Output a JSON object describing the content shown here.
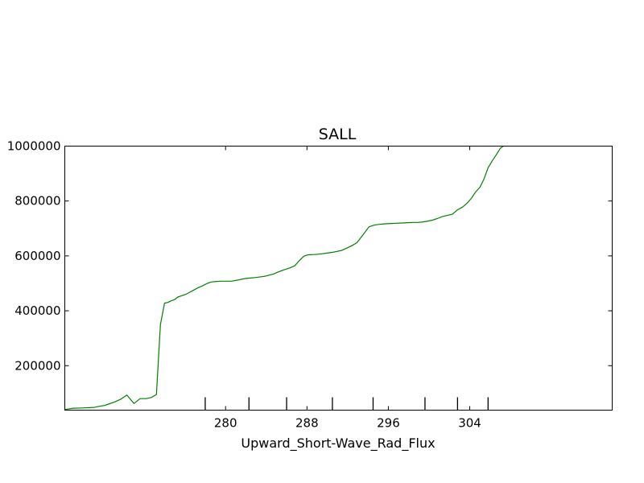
{
  "chart_data": {
    "type": "line",
    "title": "SALL",
    "xlabel": "Upward_Short-Wave_Rad_Flux",
    "ylabel": "",
    "xlim": [
      264.2,
      318.0
    ],
    "ylim": [
      38000,
      1000000
    ],
    "grid": false,
    "x_ticks": [
      280,
      288,
      296,
      304
    ],
    "x_tick_labels": [
      "280",
      "288",
      "296",
      "304"
    ],
    "x_minor_ticks": [
      278.0,
      282.3,
      286.0,
      290.5,
      294.5,
      299.6,
      302.8,
      305.8
    ],
    "y_ticks": [
      200000,
      400000,
      600000,
      800000,
      1000000
    ],
    "y_tick_labels": [
      "200000",
      "400000",
      "600000",
      "800000",
      "1000000"
    ],
    "series": [
      {
        "color": "#008000",
        "x": [
          264.2,
          265.0,
          265.9,
          266.6,
          267.1,
          267.6,
          268.1,
          268.5,
          269.1,
          269.7,
          270.3,
          271.0,
          271.6,
          272.2,
          272.7,
          273.2,
          273.6,
          274.0,
          274.3,
          274.6,
          275.0,
          275.3,
          275.7,
          276.1,
          276.5,
          276.9,
          277.3,
          277.8,
          278.2,
          278.6,
          279.1,
          279.6,
          280.1,
          280.6,
          281.2,
          281.7,
          282.3,
          282.9,
          283.5,
          283.9,
          284.2,
          284.7,
          285.2,
          285.8,
          286.3,
          286.8,
          287.2,
          287.7,
          288.1,
          288.7,
          289.1,
          289.5,
          290.1,
          290.5,
          290.9,
          291.4,
          291.9,
          292.4,
          292.9,
          293.5,
          294.1,
          294.6,
          295.1,
          295.7,
          296.3,
          296.8,
          297.4,
          297.9,
          298.4,
          298.9,
          299.3,
          299.8,
          300.3,
          300.8,
          301.3,
          301.7,
          302.3,
          302.8,
          303.3,
          303.8,
          304.2,
          304.6,
          305.0,
          305.4,
          305.8,
          306.2,
          306.6,
          307.0,
          307.3
        ],
        "y": [
          40000,
          45000,
          46000,
          47000,
          48000,
          52000,
          55000,
          60000,
          68000,
          78000,
          93000,
          62000,
          80000,
          80000,
          84000,
          95000,
          350000,
          428000,
          430000,
          435000,
          441000,
          450000,
          455000,
          460000,
          468000,
          476000,
          484000,
          492000,
          500000,
          505000,
          507000,
          508000,
          508000,
          508000,
          512000,
          516000,
          519000,
          521000,
          524000,
          526000,
          529000,
          534000,
          542000,
          550000,
          556000,
          564000,
          581000,
          599000,
          604000,
          605000,
          606000,
          608000,
          611000,
          613000,
          616000,
          620000,
          628000,
          637000,
          648000,
          676000,
          706000,
          712000,
          715000,
          717000,
          718000,
          719000,
          720000,
          721000,
          722000,
          722000,
          723000,
          726000,
          730000,
          736000,
          743000,
          747000,
          752000,
          768000,
          778000,
          794000,
          812000,
          834000,
          850000,
          880000,
          921000,
          946000,
          968000,
          992000,
          1000000
        ]
      }
    ]
  }
}
